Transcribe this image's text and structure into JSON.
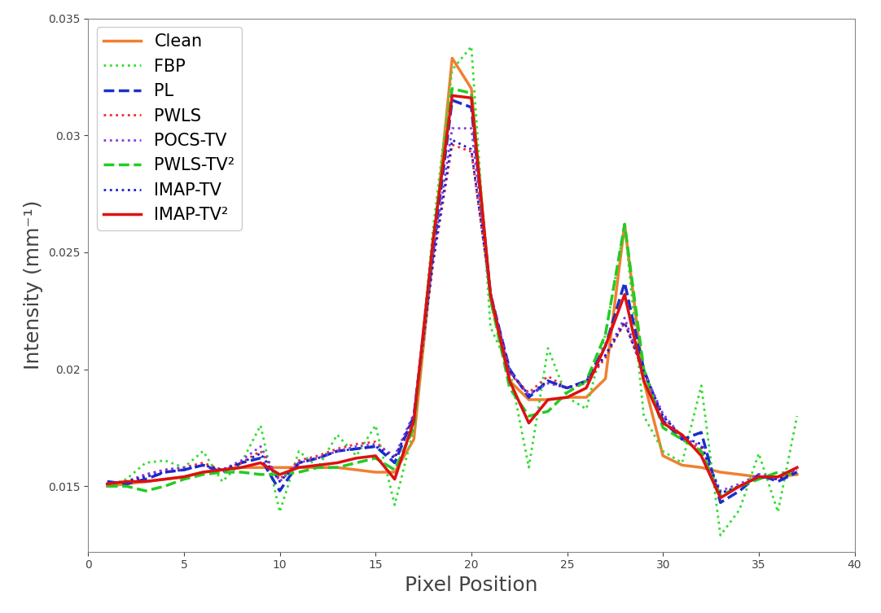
{
  "chart_data": {
    "type": "line",
    "x_label": "Pixel Position",
    "y_label": "Intensity (mm⁻¹)",
    "x": [
      1,
      2,
      3,
      4,
      5,
      6,
      7,
      8,
      9,
      10,
      11,
      12,
      13,
      14,
      15,
      16,
      17,
      18,
      19,
      20,
      21,
      22,
      23,
      24,
      25,
      26,
      27,
      28,
      29,
      30,
      31,
      32,
      33,
      34,
      35,
      36,
      37
    ],
    "xlim": [
      0,
      40
    ],
    "xticks": [
      0,
      5,
      10,
      15,
      20,
      25,
      30,
      35,
      40
    ],
    "ylim": [
      0.0122,
      0.035
    ],
    "yticks": [
      0.015,
      0.02,
      0.025,
      0.03,
      0.035
    ],
    "grid": false,
    "legend": "upper left",
    "series": [
      {
        "name": "Clean",
        "color": "#f08030",
        "line_style": "solid",
        "values": [
          0.015,
          0.0151,
          0.0152,
          0.0153,
          0.0154,
          0.0156,
          0.0157,
          0.0158,
          0.0158,
          0.0158,
          0.0158,
          0.0158,
          0.0158,
          0.0157,
          0.0156,
          0.0156,
          0.017,
          0.025,
          0.0333,
          0.032,
          0.023,
          0.0195,
          0.0187,
          0.0187,
          0.0188,
          0.0188,
          0.0196,
          0.0262,
          0.0195,
          0.0163,
          0.0159,
          0.0158,
          0.0156,
          0.0155,
          0.0154,
          0.0154,
          0.0155
        ]
      },
      {
        "name": "FBP",
        "color": "#33dd33",
        "line_style": "dotted",
        "values": [
          0.015,
          0.0153,
          0.016,
          0.0161,
          0.0158,
          0.0165,
          0.0152,
          0.016,
          0.0176,
          0.0139,
          0.0165,
          0.0158,
          0.0172,
          0.0163,
          0.0176,
          0.0142,
          0.0175,
          0.026,
          0.0328,
          0.0338,
          0.0218,
          0.02,
          0.0158,
          0.0209,
          0.0188,
          0.0183,
          0.0215,
          0.0262,
          0.018,
          0.0165,
          0.016,
          0.0193,
          0.0129,
          0.014,
          0.0164,
          0.0139,
          0.018
        ]
      },
      {
        "name": "PL",
        "color": "#1a2fcc",
        "line_style": "dashed",
        "values": [
          0.0152,
          0.0151,
          0.0153,
          0.0156,
          0.0157,
          0.0159,
          0.0156,
          0.016,
          0.0162,
          0.0148,
          0.016,
          0.0162,
          0.0165,
          0.0166,
          0.0167,
          0.016,
          0.018,
          0.025,
          0.0315,
          0.0312,
          0.0232,
          0.02,
          0.0188,
          0.0195,
          0.0192,
          0.0195,
          0.021,
          0.0237,
          0.02,
          0.0178,
          0.017,
          0.0173,
          0.0143,
          0.0148,
          0.0155,
          0.0152,
          0.0156
        ]
      },
      {
        "name": "PWLS",
        "color": "#e83030",
        "line_style": "dotted",
        "values": [
          0.0151,
          0.0152,
          0.0155,
          0.0157,
          0.0158,
          0.016,
          0.0157,
          0.016,
          0.0165,
          0.0153,
          0.0161,
          0.0163,
          0.0166,
          0.0168,
          0.0169,
          0.0162,
          0.018,
          0.0245,
          0.0296,
          0.0293,
          0.0232,
          0.0198,
          0.019,
          0.0197,
          0.0192,
          0.0194,
          0.0205,
          0.022,
          0.0198,
          0.018,
          0.017,
          0.0166,
          0.0147,
          0.015,
          0.0154,
          0.0153,
          0.0157
        ]
      },
      {
        "name": "POCS-TV",
        "color": "#8040e0",
        "line_style": "dotted",
        "values": [
          0.0151,
          0.0152,
          0.0155,
          0.0157,
          0.0158,
          0.0159,
          0.0157,
          0.0161,
          0.0167,
          0.0152,
          0.016,
          0.0162,
          0.0165,
          0.0167,
          0.0168,
          0.0163,
          0.0181,
          0.0248,
          0.0303,
          0.0303,
          0.0233,
          0.0199,
          0.0189,
          0.0194,
          0.0192,
          0.0195,
          0.0206,
          0.0222,
          0.0199,
          0.0181,
          0.0171,
          0.0167,
          0.0148,
          0.0151,
          0.0155,
          0.0154,
          0.0157
        ]
      },
      {
        "name": "PWLS-TV²",
        "color": "#22cc22",
        "line_style": "dashed",
        "values": [
          0.015,
          0.015,
          0.0148,
          0.015,
          0.0153,
          0.0155,
          0.0156,
          0.0156,
          0.0155,
          0.0155,
          0.0156,
          0.0158,
          0.0158,
          0.016,
          0.0162,
          0.0157,
          0.0175,
          0.0255,
          0.032,
          0.0318,
          0.023,
          0.0192,
          0.018,
          0.0182,
          0.019,
          0.0195,
          0.0215,
          0.0262,
          0.02,
          0.0175,
          0.017,
          0.0165,
          0.0146,
          0.015,
          0.0153,
          0.0156,
          0.0155
        ]
      },
      {
        "name": "IMAP-TV",
        "color": "#2020cc",
        "line_style": "dotted",
        "values": [
          0.0151,
          0.0152,
          0.0154,
          0.0156,
          0.0157,
          0.0159,
          0.0157,
          0.016,
          0.0164,
          0.0152,
          0.016,
          0.0162,
          0.0165,
          0.0166,
          0.0167,
          0.0162,
          0.018,
          0.0246,
          0.0298,
          0.0294,
          0.0232,
          0.0199,
          0.0189,
          0.0195,
          0.0192,
          0.0195,
          0.0206,
          0.022,
          0.0199,
          0.018,
          0.0171,
          0.0168,
          0.0147,
          0.015,
          0.0154,
          0.0153,
          0.0156
        ]
      },
      {
        "name": "IMAP-TV²",
        "color": "#dd1111",
        "line_style": "solid",
        "values": [
          0.0151,
          0.0152,
          0.0152,
          0.0153,
          0.0154,
          0.0156,
          0.0157,
          0.0158,
          0.016,
          0.0155,
          0.0158,
          0.0159,
          0.016,
          0.0162,
          0.0163,
          0.0153,
          0.0178,
          0.0255,
          0.0317,
          0.0316,
          0.0232,
          0.0195,
          0.0177,
          0.0187,
          0.0188,
          0.0192,
          0.021,
          0.0232,
          0.0195,
          0.0177,
          0.0172,
          0.0163,
          0.0145,
          0.015,
          0.0154,
          0.0154,
          0.0158
        ]
      }
    ]
  }
}
